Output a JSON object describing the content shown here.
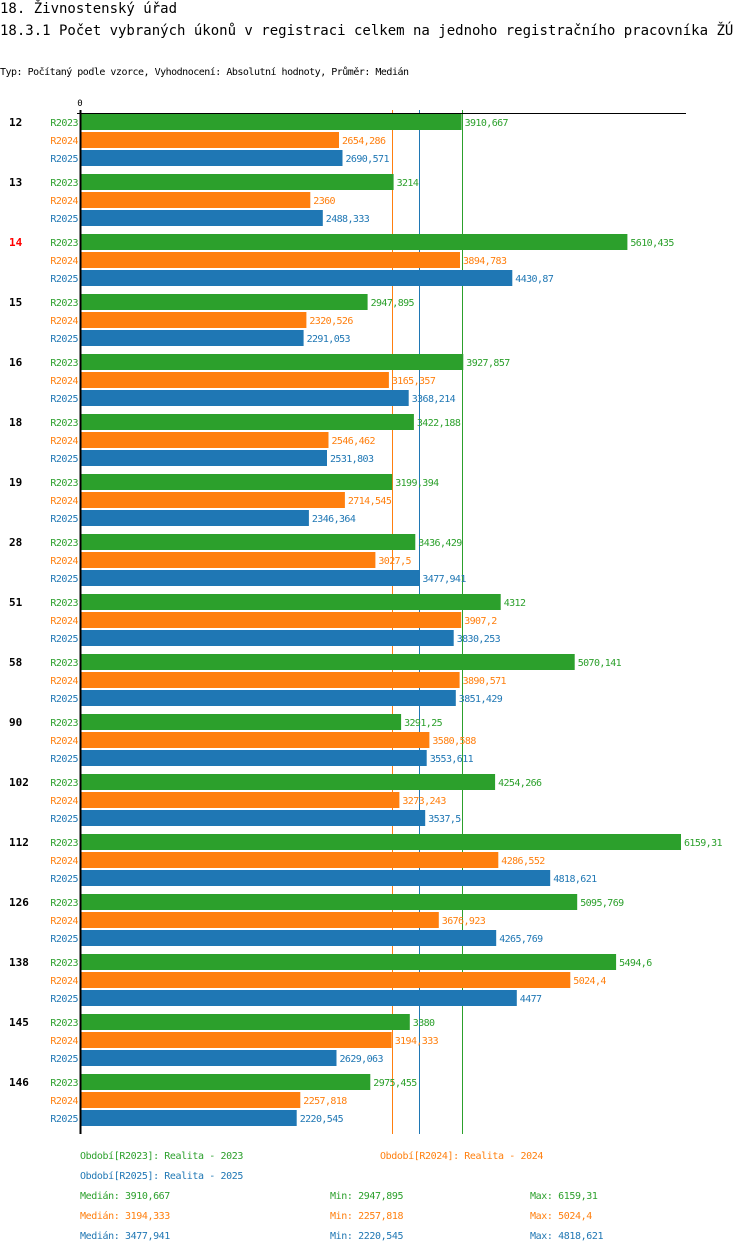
{
  "header": {
    "section": "18. Živnostenský úřad",
    "title": "18.3.1 Počet vybraných úkonů v registraci celkem na jednoho registračního pracovníka ŽÚ",
    "subtitle": "Typ: Počítaný podle vzorce, Vyhodnocení: Absolutní hodnoty, Průměr: Medián"
  },
  "colors": {
    "R2023": "#2ca02c",
    "R2024": "#ff7f0e",
    "R2025": "#1f77b4",
    "highlight_group": "#ff0000",
    "axis": "#000000"
  },
  "chart_data": {
    "type": "bar",
    "orientation": "horizontal",
    "title": "18.3.1 Počet vybraných úkonů v registraci celkem na jednoho registračního pracovníka ŽÚ",
    "xlabel": "",
    "ylabel": "",
    "x_tick_labels": [
      "0"
    ],
    "xlim": [
      0,
      6159.31
    ],
    "grid": false,
    "highlighted_category": "14",
    "categories": [
      "12",
      "13",
      "14",
      "15",
      "16",
      "18",
      "19",
      "28",
      "51",
      "58",
      "90",
      "102",
      "112",
      "126",
      "138",
      "145",
      "146"
    ],
    "series": [
      {
        "name": "R2023",
        "values": [
          3910.667,
          3214,
          5610.435,
          2947.895,
          3927.857,
          3422.188,
          3199.394,
          3436.429,
          4312,
          5070.141,
          3291.25,
          4254.266,
          6159.31,
          5095.769,
          5494.6,
          3380,
          2975.455
        ],
        "labels": [
          "3910,667",
          "3214",
          "5610,435",
          "2947,895",
          "3927,857",
          "3422,188",
          "3199,394",
          "3436,429",
          "4312",
          "5070,141",
          "3291,25",
          "4254,266",
          "6159,31",
          "5095,769",
          "5494,6",
          "3380",
          "2975,455"
        ]
      },
      {
        "name": "R2024",
        "values": [
          2654.286,
          2360,
          3894.783,
          2320.526,
          3165.357,
          2546.462,
          2714.545,
          3027.5,
          3907.2,
          3890.571,
          3580.588,
          3273.243,
          4286.552,
          3676.923,
          5024.4,
          3194.333,
          2257.818
        ],
        "labels": [
          "2654,286",
          "2360",
          "3894,783",
          "2320,526",
          "3165,357",
          "2546,462",
          "2714,545",
          "3027,5",
          "3907,2",
          "3890,571",
          "3580,588",
          "3273,243",
          "4286,552",
          "3676,923",
          "5024,4",
          "3194,333",
          "2257,818"
        ]
      },
      {
        "name": "R2025",
        "values": [
          2690.571,
          2488.333,
          4430.87,
          2291.053,
          3368.214,
          2531.803,
          2346.364,
          3477.941,
          3830.253,
          3851.429,
          3553.611,
          3537.5,
          4818.621,
          4265.769,
          4477,
          2629.063,
          2220.545
        ],
        "labels": [
          "2690,571",
          "2488,333",
          "4430,87",
          "2291,053",
          "3368,214",
          "2531,803",
          "2346,364",
          "3477,941",
          "3830,253",
          "3851,429",
          "3553,611",
          "3537,5",
          "4818,621",
          "4265,769",
          "4477",
          "2629,063",
          "2220,545"
        ]
      }
    ],
    "median_lines": [
      {
        "series": "R2023",
        "value": 3910.667
      },
      {
        "series": "R2024",
        "value": 3194.333
      },
      {
        "series": "R2025",
        "value": 3477.941
      }
    ]
  },
  "legend": {
    "periods": [
      {
        "series": "R2023",
        "text": "Období[R2023]: Realita - 2023"
      },
      {
        "series": "R2024",
        "text": "Období[R2024]: Realita - 2024"
      },
      {
        "series": "R2025",
        "text": "Období[R2025]: Realita - 2025"
      }
    ],
    "stats": [
      {
        "series": "R2023",
        "median": "Medián: 3910,667",
        "min": "Min: 2947,895",
        "max": "Max: 6159,31"
      },
      {
        "series": "R2024",
        "median": "Medián: 3194,333",
        "min": "Min: 2257,818",
        "max": "Max: 5024,4"
      },
      {
        "series": "R2025",
        "median": "Medián: 3477,941",
        "min": "Min: 2220,545",
        "max": "Max: 4818,621"
      }
    ]
  }
}
